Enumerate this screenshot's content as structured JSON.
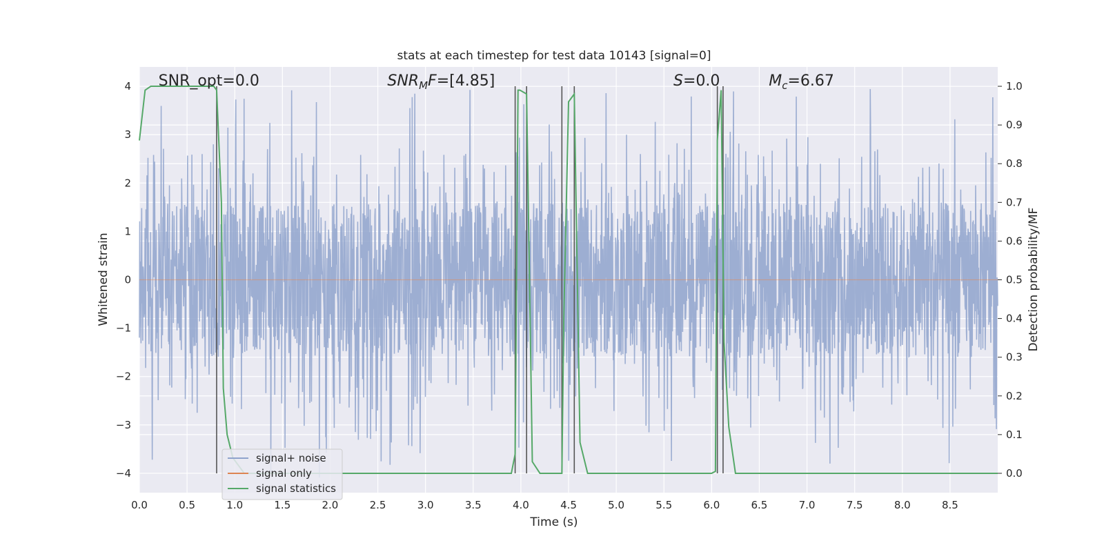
{
  "chart_data": {
    "type": "line",
    "title": "stats at each timestep for test data 10143 [signal=0]",
    "xlabel": "Time (s)",
    "ylabel": "Whitened strain",
    "y2label": "Detection probability/MF",
    "xlim": [
      0,
      9
    ],
    "ylim": [
      -4.4,
      4.4
    ],
    "y2lim": [
      -0.05,
      1.05
    ],
    "xticks": [
      "0.0",
      "0.5",
      "1.0",
      "1.5",
      "2.0",
      "2.5",
      "3.0",
      "3.5",
      "4.0",
      "4.5",
      "5.0",
      "5.5",
      "6.0",
      "6.5",
      "7.0",
      "7.5",
      "8.0",
      "8.5"
    ],
    "yticks": [
      "−4",
      "−3",
      "−2",
      "−1",
      "0",
      "1",
      "2",
      "3",
      "4"
    ],
    "y2ticks": [
      "0.0",
      "0.1",
      "0.2",
      "0.3",
      "0.4",
      "0.5",
      "0.6",
      "0.7",
      "0.8",
      "0.9",
      "1.0"
    ],
    "grid": true,
    "legend_position": "lower-left",
    "annotations": [
      {
        "id": "snr-opt",
        "text": "SNR_opt=0.0",
        "x": 0.2
      },
      {
        "id": "snr-mf",
        "text_parts": [
          {
            "t": "SNR",
            "i": true
          },
          {
            "t": "M",
            "i": true,
            "sub": true
          },
          {
            "t": "F",
            "i": true
          },
          {
            "t": "=[4.85]",
            "i": false
          }
        ],
        "x": 2.6
      },
      {
        "id": "s-val",
        "text_parts": [
          {
            "t": "S",
            "i": true
          },
          {
            "t": "=0.0",
            "i": false
          }
        ],
        "x": 5.6
      },
      {
        "id": "mc-val",
        "text_parts": [
          {
            "t": "M",
            "i": true
          },
          {
            "t": "c",
            "i": true,
            "sub": true
          },
          {
            "t": "=6.67",
            "i": false
          }
        ],
        "x": 6.6
      }
    ],
    "vlines": [
      0.81,
      3.94,
      4.06,
      4.43,
      4.56,
      6.06,
      6.12
    ],
    "vline_range": [
      -4,
      4
    ],
    "series": [
      {
        "name": "signal+ noise",
        "color": "#8fa3cc",
        "kind": "noise",
        "amplitude_core": 1.6,
        "amplitude_max": 4.1
      },
      {
        "name": "signal only",
        "color": "#dd8452",
        "x": [
          0,
          9
        ],
        "y": [
          0,
          0
        ]
      },
      {
        "name": "signal statistics",
        "color": "#55a868",
        "axis": "right",
        "x": [
          0.0,
          0.06,
          0.12,
          0.3,
          0.5,
          0.7,
          0.78,
          0.81,
          0.86,
          0.88,
          0.92,
          0.98,
          1.1,
          2.0,
          3.0,
          3.9,
          3.94,
          3.97,
          3.99,
          4.06,
          4.12,
          4.2,
          4.3,
          4.43,
          4.45,
          4.5,
          4.56,
          4.62,
          4.7,
          5.0,
          6.0,
          6.04,
          6.06,
          6.1,
          6.13,
          6.18,
          6.25,
          6.5,
          7.0,
          7.2,
          7.3,
          8.0,
          8.6,
          9.0
        ],
        "y": [
          0.86,
          0.99,
          1.0,
          1.0,
          1.0,
          1.0,
          1.0,
          0.99,
          0.7,
          0.22,
          0.1,
          0.04,
          0.0,
          0.0,
          0.0,
          0.0,
          0.05,
          0.99,
          0.99,
          0.98,
          0.03,
          0.0,
          0.0,
          0.0,
          0.4,
          0.96,
          0.98,
          0.08,
          0.0,
          0.0,
          0.0,
          0.005,
          0.86,
          0.99,
          0.34,
          0.12,
          0.0,
          0.0,
          0.0,
          0.0,
          0.0,
          0.0,
          0.0,
          0.0
        ]
      }
    ]
  }
}
